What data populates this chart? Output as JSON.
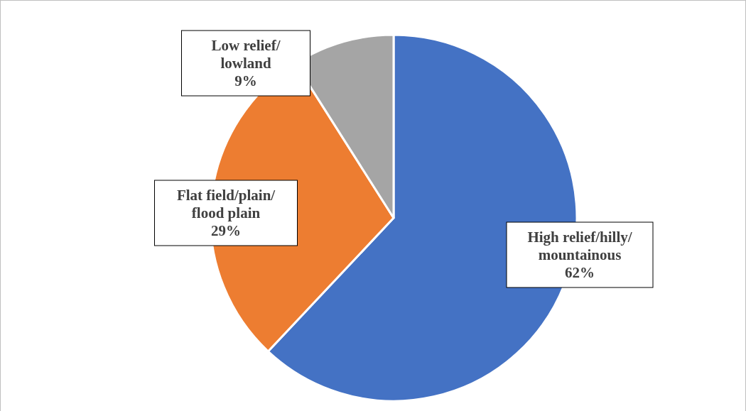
{
  "chart_data": {
    "type": "pie",
    "categories": [
      "High relief/hilly/mountainous",
      "Flat field/plain/flood plain",
      "Low relief/lowland"
    ],
    "values": [
      62,
      29,
      9
    ],
    "colors": [
      "#4472c4",
      "#ed7d31",
      "#a5a5a5"
    ],
    "value_labels": [
      "62%",
      "29%",
      "9%"
    ],
    "legend": false
  }
}
